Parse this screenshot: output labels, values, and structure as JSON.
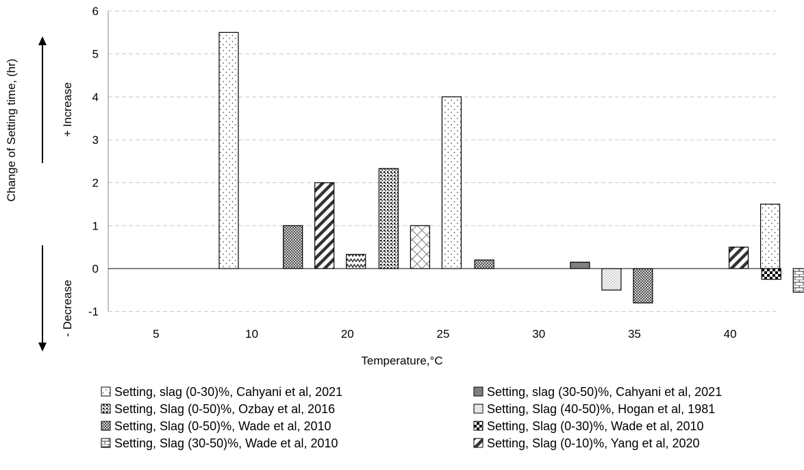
{
  "chart_data": {
    "type": "bar",
    "categories": [
      "5",
      "10",
      "20",
      "25",
      "30",
      "35",
      "40"
    ],
    "xlabel": "Temperature,°C",
    "ylabel": "Change of Setting time, (hr)",
    "increase_label": "+ Increase",
    "decrease_label": "- Decrease",
    "ylim": [
      -1,
      6
    ],
    "yticks": [
      "-1",
      "0",
      "1",
      "2",
      "3",
      "4",
      "5",
      "6"
    ],
    "grid": true,
    "legend_position": "bottom",
    "series": [
      {
        "name": "Setting, slag (0-30)%, Cahyani et al, 2021",
        "pattern": "dots-sparse",
        "values": [
          {
            "category": "5",
            "slot": 1,
            "y": 5.5
          },
          {
            "category": "20",
            "slot": 2,
            "y": 4.0
          },
          {
            "category": "35",
            "slot": 3,
            "y": 1.5
          }
        ]
      },
      {
        "name": "Setting, slag (30-50)%, Cahyani et al, 2021",
        "pattern": "solid-gray",
        "values": [
          {
            "category": "30",
            "slot": 0,
            "y": 0.15
          }
        ]
      },
      {
        "name": "Setting, Slag (0-50)%, Ozbay et al, 2016",
        "pattern": "dots-dense",
        "values": [
          {
            "category": "20",
            "slot": 0,
            "y": 2.33
          }
        ]
      },
      {
        "name": "Setting, Slag (40-50)%, Hogan et al, 1981",
        "pattern": "dots-light",
        "values": [
          {
            "category": "30",
            "slot": 1,
            "y": -0.5
          }
        ]
      },
      {
        "name": "Setting, Slag (0-50)%, Wade et al, 2010",
        "pattern": "grid-fine",
        "values": [
          {
            "category": "10",
            "slot": 0,
            "y": 1.0
          },
          {
            "category": "25",
            "slot": 0,
            "y": 0.2
          },
          {
            "category": "30",
            "slot": 2,
            "y": -0.8
          }
        ]
      },
      {
        "name": "Setting, Slag (0-30)%, Wade et al, 2010",
        "pattern": "checker",
        "values": [
          {
            "category": "40",
            "slot": 0,
            "y": -0.25
          }
        ]
      },
      {
        "name": "Setting, Slag (30-50)%, Wade et al, 2010",
        "pattern": "brick",
        "values": [
          {
            "category": "40",
            "slot": 1,
            "y": -0.55
          }
        ]
      },
      {
        "name": "Setting, Slag (0-10)%, Yang et al, 2020",
        "pattern": "diag",
        "values": [
          {
            "category": "10",
            "slot": 1,
            "y": 2.0
          },
          {
            "category": "35",
            "slot": 2,
            "y": 0.5
          }
        ]
      },
      {
        "name": "",
        "pattern": "zigzag",
        "values": [
          {
            "category": "10",
            "slot": 2,
            "y": 0.33
          }
        ]
      },
      {
        "name": "",
        "pattern": "crosshatch",
        "values": [
          {
            "category": "20",
            "slot": 1,
            "y": 1.0
          }
        ]
      }
    ]
  }
}
